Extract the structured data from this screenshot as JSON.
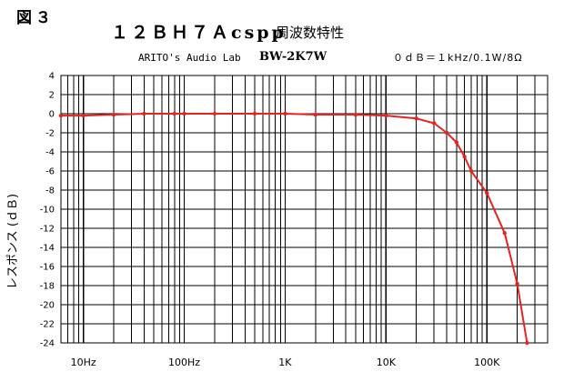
{
  "figure_label": "図３",
  "header": {
    "title": "１２ＢＨ７Ａcspp",
    "title_suffix": "周波数特性",
    "maker": "ARITO's Audio Lab",
    "model": "BW-2K7W",
    "reference": "０ｄＢ＝１kHz/0.1W/8Ω"
  },
  "colors": {
    "grid": "#000000",
    "curve": "#e8231f",
    "background": "#ffffff"
  },
  "chart_data": {
    "type": "line",
    "title": "１２ＢＨ７Ａcspp 周波数特性",
    "xlabel": "",
    "ylabel": "レスポンス (ｄＢ)",
    "x_scale": "log",
    "xlim": [
      6,
      400000
    ],
    "ylim": [
      -24,
      4
    ],
    "y_ticks": [
      4,
      2,
      0,
      -2,
      -4,
      -6,
      -8,
      -10,
      -12,
      -14,
      -16,
      -18,
      -20,
      -22,
      -24
    ],
    "x_tick_values": [
      10,
      100,
      1000,
      10000,
      100000
    ],
    "x_tick_labels": [
      "10Hz",
      "100Hz",
      "1K",
      "10K",
      "100K"
    ],
    "grid": true,
    "series": [
      {
        "x": [
          6,
          10,
          20,
          40,
          80,
          100,
          200,
          500,
          1000,
          2000,
          5000,
          10000,
          20000,
          30000,
          40000,
          50000,
          60000,
          70000,
          100000,
          150000,
          200000,
          250000
        ],
        "y": [
          -0.2,
          -0.2,
          -0.1,
          0,
          0,
          0,
          0,
          0,
          0,
          -0.1,
          -0.1,
          -0.2,
          -0.5,
          -1.0,
          -2.0,
          -3.0,
          -4.5,
          -6.0,
          -8.3,
          -12.5,
          -17.8,
          -24.0
        ]
      }
    ]
  }
}
